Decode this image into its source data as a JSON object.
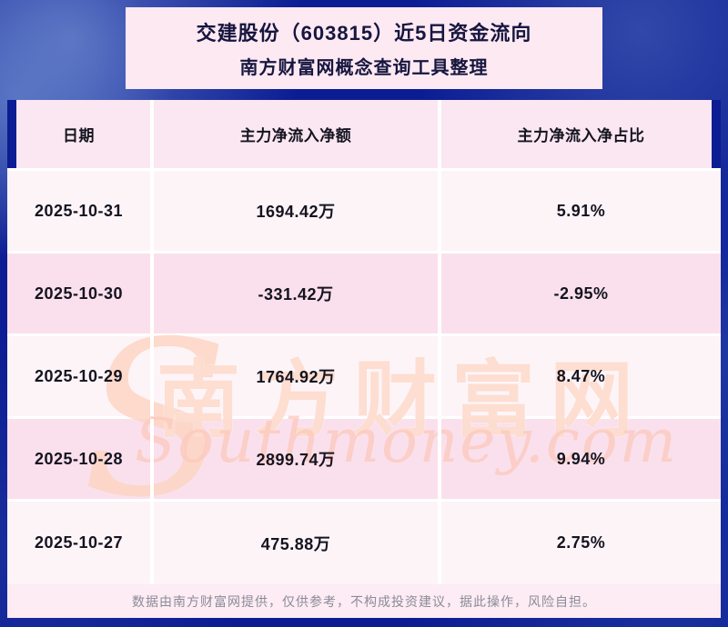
{
  "chart_data": {
    "type": "table",
    "title": "交建股份（603815）近5日资金流向",
    "subtitle": "南方财富网概念查询工具整理",
    "columns": [
      "日期",
      "主力净流入净额",
      "主力净流入净占比"
    ],
    "rows": [
      [
        "2025-10-31",
        "1694.42万",
        "5.91%"
      ],
      [
        "2025-10-30",
        "-331.42万",
        "-2.95%"
      ],
      [
        "2025-10-29",
        "1764.92万",
        "8.47%"
      ],
      [
        "2025-10-28",
        "2899.74万",
        "9.94%"
      ],
      [
        "2025-10-27",
        "475.88万",
        "2.75%"
      ]
    ],
    "x": [
      "2025-10-31",
      "2025-10-30",
      "2025-10-29",
      "2025-10-28",
      "2025-10-27"
    ],
    "series": [
      {
        "name": "主力净流入净额(万)",
        "values": [
          1694.42,
          -331.42,
          1764.92,
          2899.74,
          475.88
        ]
      },
      {
        "name": "主力净流入净占比(%)",
        "values": [
          5.91,
          -2.95,
          8.47,
          9.94,
          2.75
        ]
      }
    ]
  },
  "watermark": {
    "cn": "南方财富网",
    "en": "Southmoney.com",
    "initial": "S"
  },
  "footer": "数据由南方财富网提供，仅供参考，不构成投资建议，据此操作，风险自担。",
  "colors": {
    "background_blue": "#0c1d93",
    "banner_pink": "#fde9f2",
    "row_light": "#fdf4f8",
    "row_dark": "#fae0ec",
    "header_pink": "#fbe7f1",
    "watermark_peach": "#fcd3c0",
    "text_dark": "#141420",
    "footer_gray": "#8b8b97"
  }
}
